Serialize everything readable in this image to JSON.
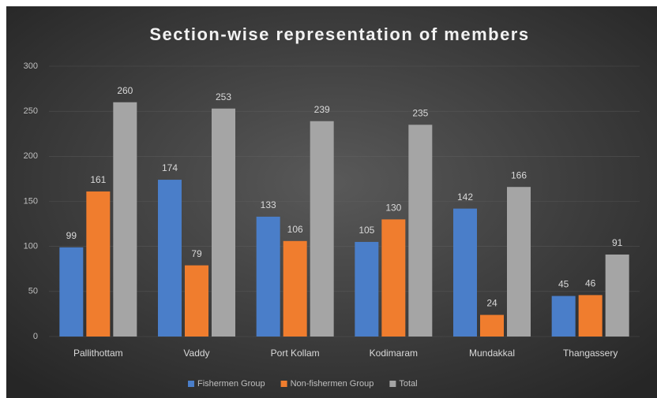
{
  "chart_data": {
    "type": "bar",
    "title": "Section-wise representation of members",
    "categories": [
      "Pallithottam",
      "Vaddy",
      "Port Kollam",
      "Kodimaram",
      "Mundakkal",
      "Thangassery"
    ],
    "series": [
      {
        "name": "Fishermen Group",
        "color": "#4a7ec9",
        "values": [
          99,
          174,
          133,
          105,
          142,
          45
        ]
      },
      {
        "name": "Non-fishermen Group",
        "color": "#f07d2e",
        "values": [
          161,
          79,
          106,
          130,
          24,
          46
        ]
      },
      {
        "name": "Total",
        "color": "#a5a5a5",
        "values": [
          260,
          253,
          239,
          235,
          166,
          91
        ]
      }
    ],
    "ylim": [
      0,
      300
    ],
    "yticks": [
      0,
      50,
      100,
      150,
      200,
      250,
      300
    ],
    "grid": true,
    "legend": "bottom"
  }
}
